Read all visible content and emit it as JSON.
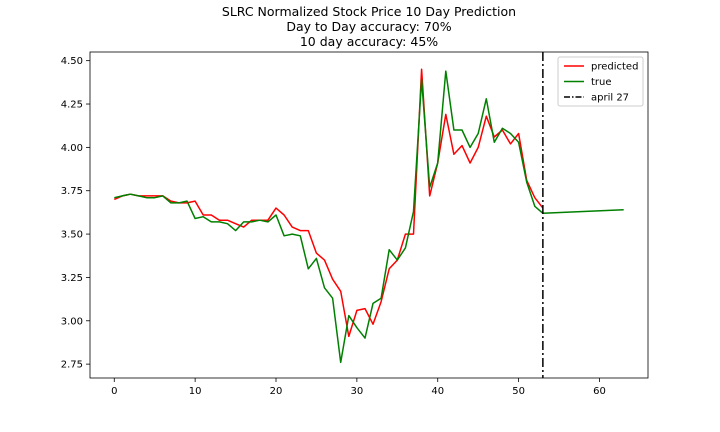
{
  "chart_data": {
    "type": "line",
    "title_lines": [
      "SLRC Normalized Stock Price 10 Day Prediction",
      "Day to Day accuracy: 70%",
      "10 day accuracy: 45%"
    ],
    "xlabel": "",
    "ylabel": "",
    "xlim": [
      -3,
      66
    ],
    "ylim": [
      2.67,
      4.55
    ],
    "x_ticks": [
      0,
      10,
      20,
      30,
      40,
      50,
      60
    ],
    "y_ticks": [
      2.75,
      3.0,
      3.25,
      3.5,
      3.75,
      4.0,
      4.25,
      4.5
    ],
    "y_tick_labels": [
      "2.75",
      "3.00",
      "3.25",
      "3.50",
      "3.75",
      "4.00",
      "4.25",
      "4.50"
    ],
    "grid": false,
    "legend_position": "top-right",
    "series": [
      {
        "name": "predicted",
        "color": "#ff0000",
        "x": [
          0,
          1,
          2,
          3,
          4,
          5,
          6,
          7,
          8,
          9,
          10,
          11,
          12,
          13,
          14,
          15,
          16,
          17,
          18,
          19,
          20,
          21,
          22,
          23,
          24,
          25,
          26,
          27,
          28,
          29,
          30,
          31,
          32,
          33,
          34,
          35,
          36,
          37,
          38,
          39,
          40,
          41,
          42,
          43,
          44,
          45,
          46,
          47,
          48,
          49,
          50,
          51,
          52,
          53
        ],
        "y": [
          3.7,
          3.72,
          3.73,
          3.72,
          3.72,
          3.72,
          3.72,
          3.69,
          3.68,
          3.68,
          3.69,
          3.61,
          3.61,
          3.58,
          3.58,
          3.56,
          3.54,
          3.58,
          3.58,
          3.58,
          3.65,
          3.61,
          3.54,
          3.52,
          3.52,
          3.39,
          3.35,
          3.24,
          3.17,
          2.91,
          3.06,
          3.07,
          2.98,
          3.11,
          3.3,
          3.35,
          3.5,
          3.5,
          4.45,
          3.72,
          3.91,
          4.19,
          3.96,
          4.01,
          3.91,
          4.0,
          4.18,
          4.06,
          4.1,
          4.02,
          4.08,
          3.81,
          3.71,
          3.65
        ]
      },
      {
        "name": "true",
        "color": "#008000",
        "x": [
          0,
          1,
          2,
          3,
          4,
          5,
          6,
          7,
          8,
          9,
          10,
          11,
          12,
          13,
          14,
          15,
          16,
          17,
          18,
          19,
          20,
          21,
          22,
          23,
          24,
          25,
          26,
          27,
          28,
          29,
          30,
          31,
          32,
          33,
          34,
          35,
          36,
          37,
          38,
          39,
          40,
          41,
          42,
          43,
          44,
          45,
          46,
          47,
          48,
          49,
          50,
          51,
          52,
          53,
          63
        ],
        "y": [
          3.71,
          3.72,
          3.73,
          3.72,
          3.71,
          3.71,
          3.72,
          3.68,
          3.68,
          3.69,
          3.59,
          3.6,
          3.57,
          3.57,
          3.56,
          3.52,
          3.57,
          3.57,
          3.58,
          3.57,
          3.61,
          3.49,
          3.5,
          3.49,
          3.3,
          3.36,
          3.19,
          3.13,
          2.76,
          3.03,
          2.96,
          2.9,
          3.1,
          3.13,
          3.41,
          3.35,
          3.42,
          3.63,
          4.39,
          3.77,
          3.91,
          4.44,
          4.1,
          4.1,
          4.0,
          4.08,
          4.28,
          4.03,
          4.11,
          4.08,
          4.03,
          3.8,
          3.66,
          3.62,
          3.64
        ]
      }
    ],
    "vlines": [
      {
        "name": "april 27",
        "x": 53,
        "color": "#000000",
        "style": "dash-dot"
      }
    ],
    "legend": [
      {
        "label": "predicted",
        "color": "#ff0000",
        "style": "solid"
      },
      {
        "label": "true",
        "color": "#008000",
        "style": "solid"
      },
      {
        "label": "april 27",
        "color": "#000000",
        "style": "dash-dot"
      }
    ]
  }
}
